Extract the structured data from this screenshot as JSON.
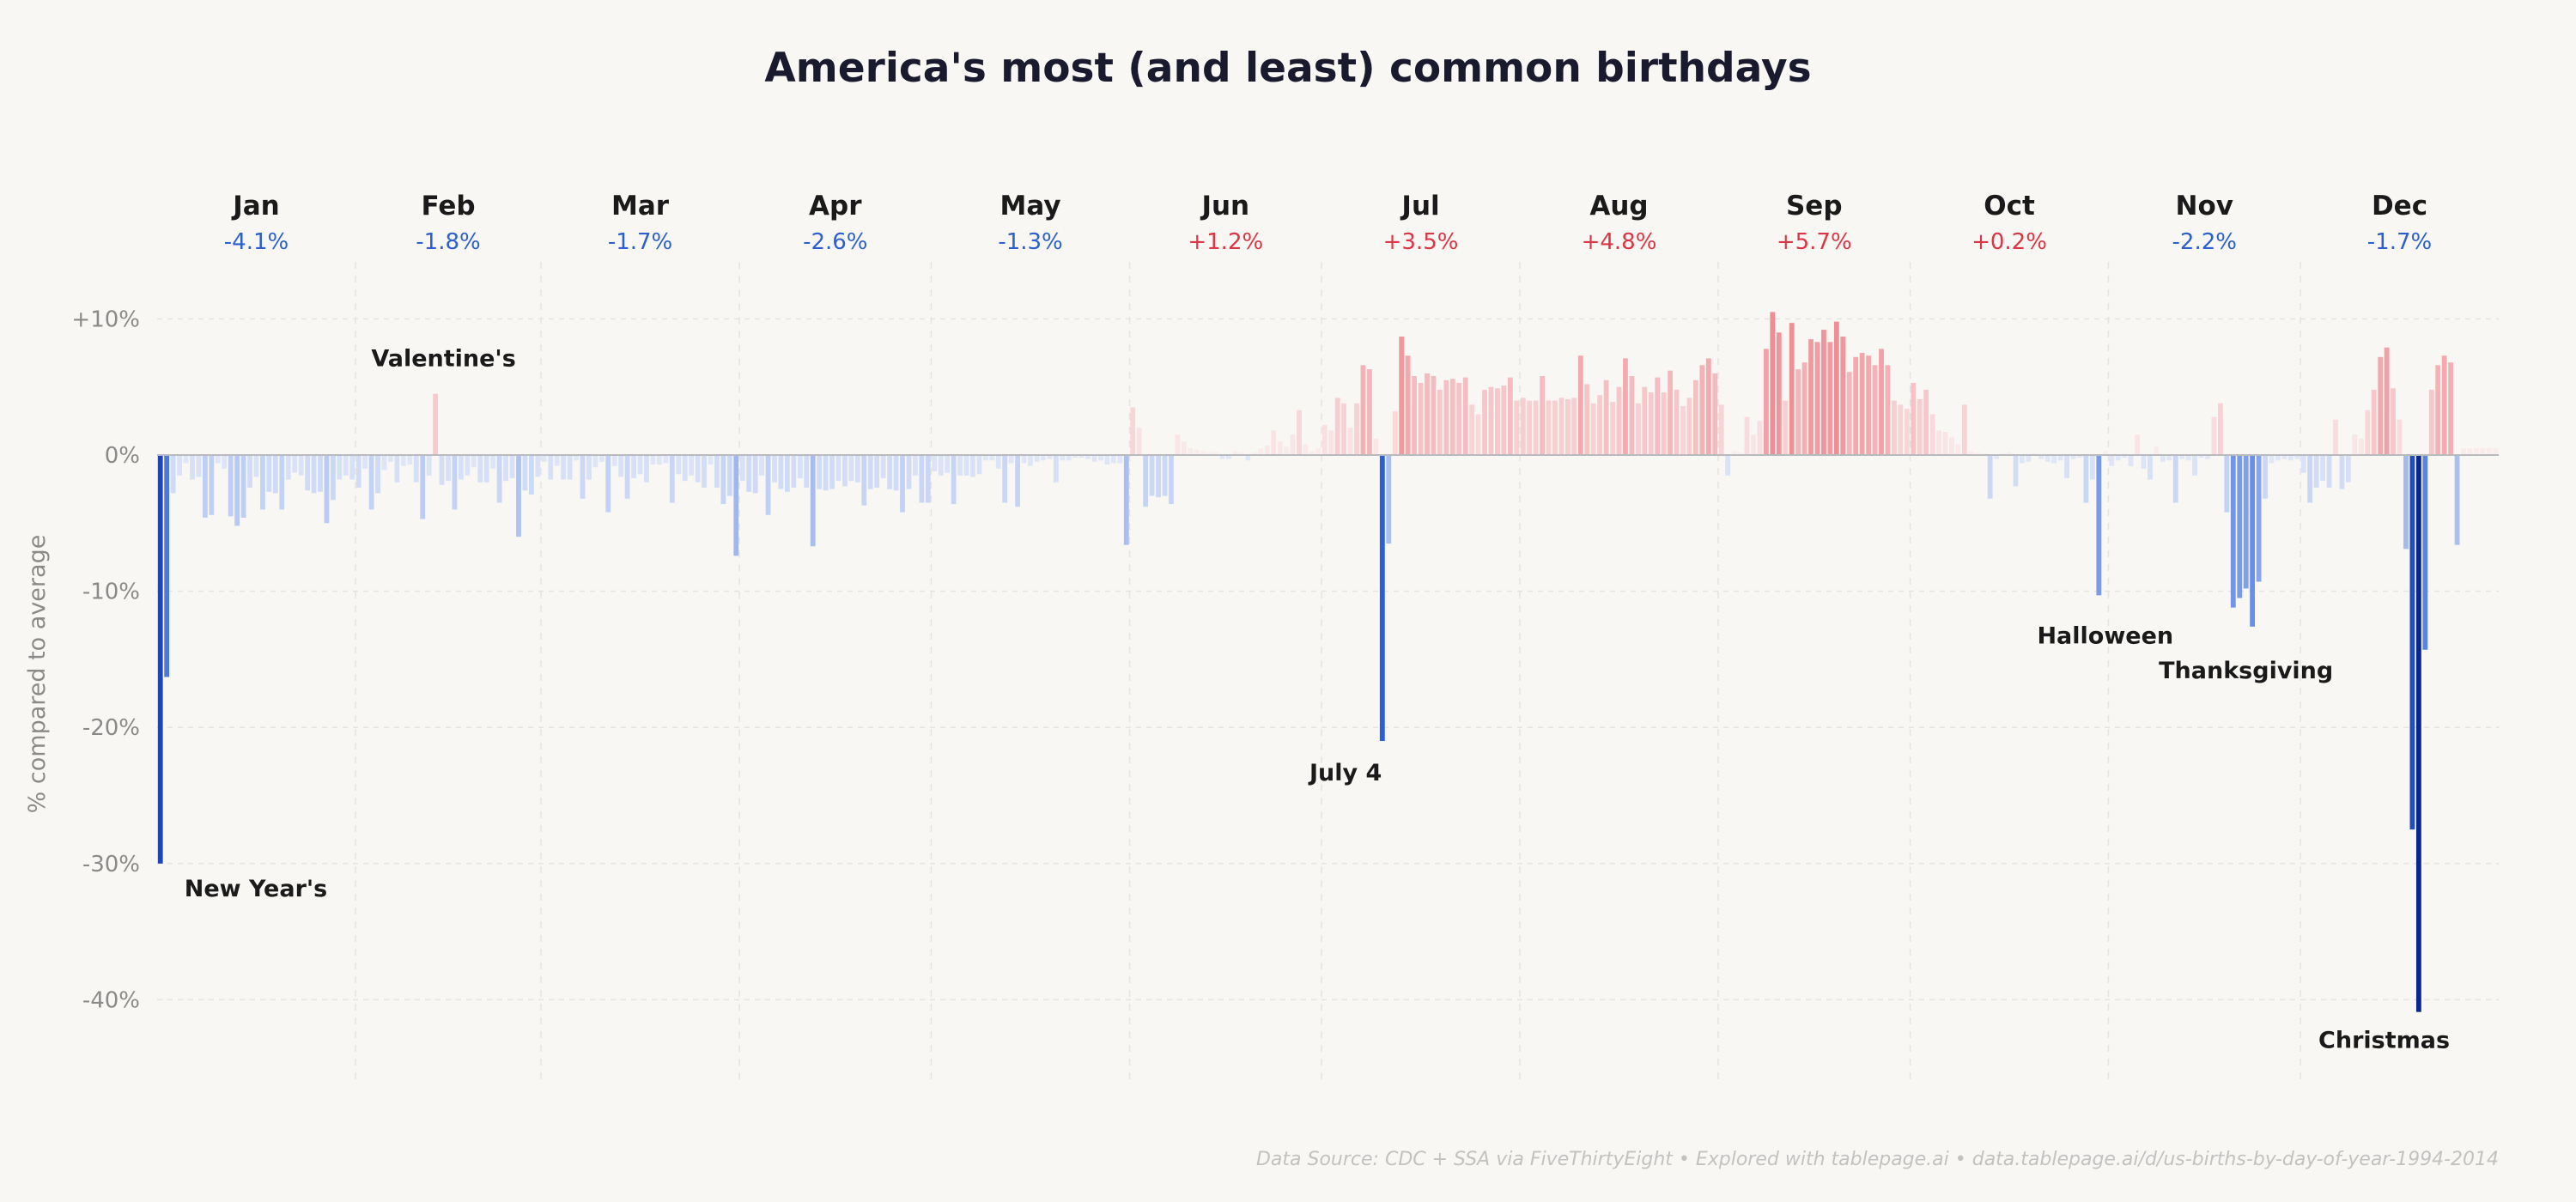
{
  "title": "America's most (and least) common birthdays",
  "source": "Data Source: CDC + SSA via FiveThirtyEight  •  Explored with tablepage.ai  •  data.tablepage.ai/d/us-births-by-day-of-year-1994-2014",
  "colors": {
    "negative_strong": "#0a2a8f",
    "negative_mid": "#2f62d8",
    "negative_light": "#c8d8fb",
    "positive_strong": "#ee8d94",
    "positive_light": "#fbe4e4",
    "month_negative_text": "#2c5fcf",
    "month_positive_text": "#dc3545",
    "background": "#f8f7f4"
  },
  "chart_data": {
    "type": "bar",
    "title": "America's most (and least) common birthdays",
    "ylabel": "% compared to average",
    "ylim": [
      -46,
      14
    ],
    "yticks": [
      10,
      0,
      -10,
      -20,
      -30,
      -40
    ],
    "ytick_labels": [
      "+10%",
      "0%",
      "-10%",
      "-20%",
      "-30%",
      "-40%"
    ],
    "grid": true,
    "months": [
      {
        "name": "Jan",
        "delta": "-4.1%",
        "days": 31
      },
      {
        "name": "Feb",
        "delta": "-1.8%",
        "days": 29
      },
      {
        "name": "Mar",
        "delta": "-1.7%",
        "days": 31
      },
      {
        "name": "Apr",
        "delta": "-2.6%",
        "days": 30
      },
      {
        "name": "May",
        "delta": "-1.3%",
        "days": 31
      },
      {
        "name": "Jun",
        "delta": "+1.2%",
        "days": 30
      },
      {
        "name": "Jul",
        "delta": "+3.5%",
        "days": 31
      },
      {
        "name": "Aug",
        "delta": "+4.8%",
        "days": 31
      },
      {
        "name": "Sep",
        "delta": "+5.7%",
        "days": 30
      },
      {
        "name": "Oct",
        "delta": "+0.2%",
        "days": 31
      },
      {
        "name": "Nov",
        "delta": "-2.2%",
        "days": 30
      },
      {
        "name": "Dec",
        "delta": "-1.7%",
        "days": 31
      }
    ],
    "values": [
      -30.0,
      -16.3,
      -2.8,
      -1.5,
      -0.6,
      -1.8,
      -1.6,
      -4.6,
      -4.4,
      -0.6,
      -1.0,
      -4.5,
      -5.2,
      -4.6,
      -2.4,
      -1.6,
      -4.0,
      -2.7,
      -2.8,
      -4.0,
      -1.8,
      -1.3,
      -1.5,
      -2.6,
      -2.8,
      -2.7,
      -5.0,
      -3.3,
      -1.8,
      -1.5,
      -1.8,
      -2.4,
      -1.0,
      -4.0,
      -2.8,
      -1.1,
      -0.5,
      -2.0,
      -0.8,
      -0.7,
      -2.0,
      -4.7,
      -1.5,
      4.5,
      -2.2,
      -1.9,
      -4.0,
      -1.8,
      -1.5,
      -0.9,
      -2.0,
      -2.0,
      -1.0,
      -3.5,
      -1.9,
      -1.7,
      -6.0,
      -2.6,
      -2.9,
      -1.6,
      -0.5,
      -1.8,
      -0.8,
      -1.8,
      -1.8,
      -0.4,
      -3.2,
      -1.8,
      -0.9,
      -0.5,
      -4.2,
      -0.8,
      -1.6,
      -3.2,
      -1.7,
      -1.4,
      -2.0,
      -0.7,
      -0.7,
      -0.6,
      -3.5,
      -1.4,
      -1.9,
      -1.5,
      -2.0,
      -2.4,
      -0.7,
      -2.4,
      -3.6,
      -3.0,
      -7.4,
      -1.9,
      -2.7,
      -2.8,
      -1.5,
      -4.4,
      -2.0,
      -2.5,
      -2.7,
      -2.4,
      -1.7,
      -2.4,
      -6.7,
      -2.5,
      -2.6,
      -2.5,
      -1.9,
      -2.3,
      -1.9,
      -2.0,
      -3.7,
      -2.5,
      -2.4,
      -1.7,
      -2.5,
      -2.6,
      -4.2,
      -2.5,
      -1.5,
      -3.5,
      -3.5,
      -1.2,
      -1.5,
      -1.3,
      -3.6,
      -1.5,
      -1.5,
      -1.6,
      -1.4,
      -0.4,
      -0.4,
      -1.0,
      -3.5,
      -0.6,
      -3.8,
      -0.6,
      -0.8,
      -0.5,
      -0.4,
      -0.3,
      -2.0,
      -0.4,
      -0.4,
      -0.2,
      -0.2,
      -0.3,
      -0.5,
      -0.4,
      -0.7,
      -0.6,
      -0.6,
      -6.6,
      3.5,
      2.0,
      -3.8,
      -3.0,
      -3.1,
      -3.0,
      -3.6,
      1.5,
      1.0,
      0.5,
      0.4,
      0.3,
      0.2,
      0.2,
      -0.3,
      -0.3,
      0.3,
      0.2,
      -0.4,
      0.2,
      0.5,
      0.7,
      1.8,
      1.0,
      0.6,
      1.5,
      3.3,
      0.8,
      0.3,
      0.5,
      2.2,
      1.8,
      4.2,
      3.8,
      2.0,
      3.8,
      6.6,
      6.3,
      1.2,
      -21.0,
      -6.5,
      3.2,
      8.7,
      7.3,
      5.8,
      5.3,
      6.0,
      5.8,
      4.8,
      5.5,
      5.6,
      5.3,
      5.7,
      3.7,
      3.0,
      4.8,
      5.0,
      4.9,
      5.1,
      5.7,
      4.0,
      4.2,
      4.0,
      4.0,
      5.8,
      4.0,
      4.0,
      4.2,
      4.1,
      4.2,
      7.3,
      5.2,
      3.8,
      4.4,
      5.5,
      3.9,
      5.0,
      7.1,
      5.8,
      3.8,
      5.0,
      4.6,
      5.7,
      4.6,
      6.2,
      4.8,
      3.6,
      4.2,
      5.5,
      6.6,
      7.1,
      6.0,
      3.7,
      -1.5,
      0.3,
      0.2,
      2.8,
      1.5,
      2.5,
      7.8,
      10.5,
      9.0,
      4.0,
      9.7,
      6.3,
      6.8,
      8.5,
      8.3,
      9.2,
      8.3,
      9.8,
      8.7,
      6.1,
      7.2,
      7.5,
      7.3,
      6.6,
      7.8,
      6.6,
      4.0,
      3.7,
      3.4,
      5.3,
      4.1,
      4.8,
      3.0,
      1.8,
      1.7,
      1.3,
      0.8,
      3.7,
      0.3,
      0.2,
      0.1,
      -3.2,
      -0.3,
      0.1,
      0.2,
      -2.3,
      -0.6,
      -0.5,
      0.1,
      -0.3,
      -0.5,
      -0.6,
      -0.4,
      -1.7,
      -0.3,
      -0.2,
      -3.5,
      -1.8,
      -10.3,
      0.3,
      -0.8,
      -0.4,
      -0.2,
      -0.8,
      1.5,
      -1.0,
      -1.8,
      0.6,
      -0.5,
      -0.4,
      -3.5,
      -0.3,
      -0.4,
      -1.5,
      -0.2,
      -0.3,
      2.8,
      3.8,
      -4.2,
      -11.2,
      -10.5,
      -9.8,
      -12.6,
      -9.3,
      -3.2,
      -0.6,
      -0.4,
      -0.3,
      -0.4,
      -0.3,
      -1.3,
      -3.5,
      -2.4,
      -1.9,
      -2.4,
      2.6,
      -2.5,
      -2.0,
      1.5,
      1.2,
      3.3,
      4.8,
      7.2,
      7.9,
      4.9,
      2.6,
      -6.9,
      -27.5,
      -40.9,
      -14.3,
      4.8,
      6.6,
      7.3,
      6.8,
      -6.6,
      0.5,
      0.5,
      0.5,
      0.5,
      0.5,
      0.5
    ],
    "annotations": [
      {
        "label": "New Year's",
        "day": 1,
        "value": -30.0
      },
      {
        "label": "Valentine's",
        "day": 45,
        "value": 4.5
      },
      {
        "label": "July 4",
        "day": 186,
        "value": -21.0
      },
      {
        "label": "Halloween",
        "day": 305,
        "value": -10.3
      },
      {
        "label": "Thanksgiving",
        "day": 327,
        "value": -12.6
      },
      {
        "label": "Christmas",
        "day": 360,
        "value": -40.9
      }
    ]
  }
}
